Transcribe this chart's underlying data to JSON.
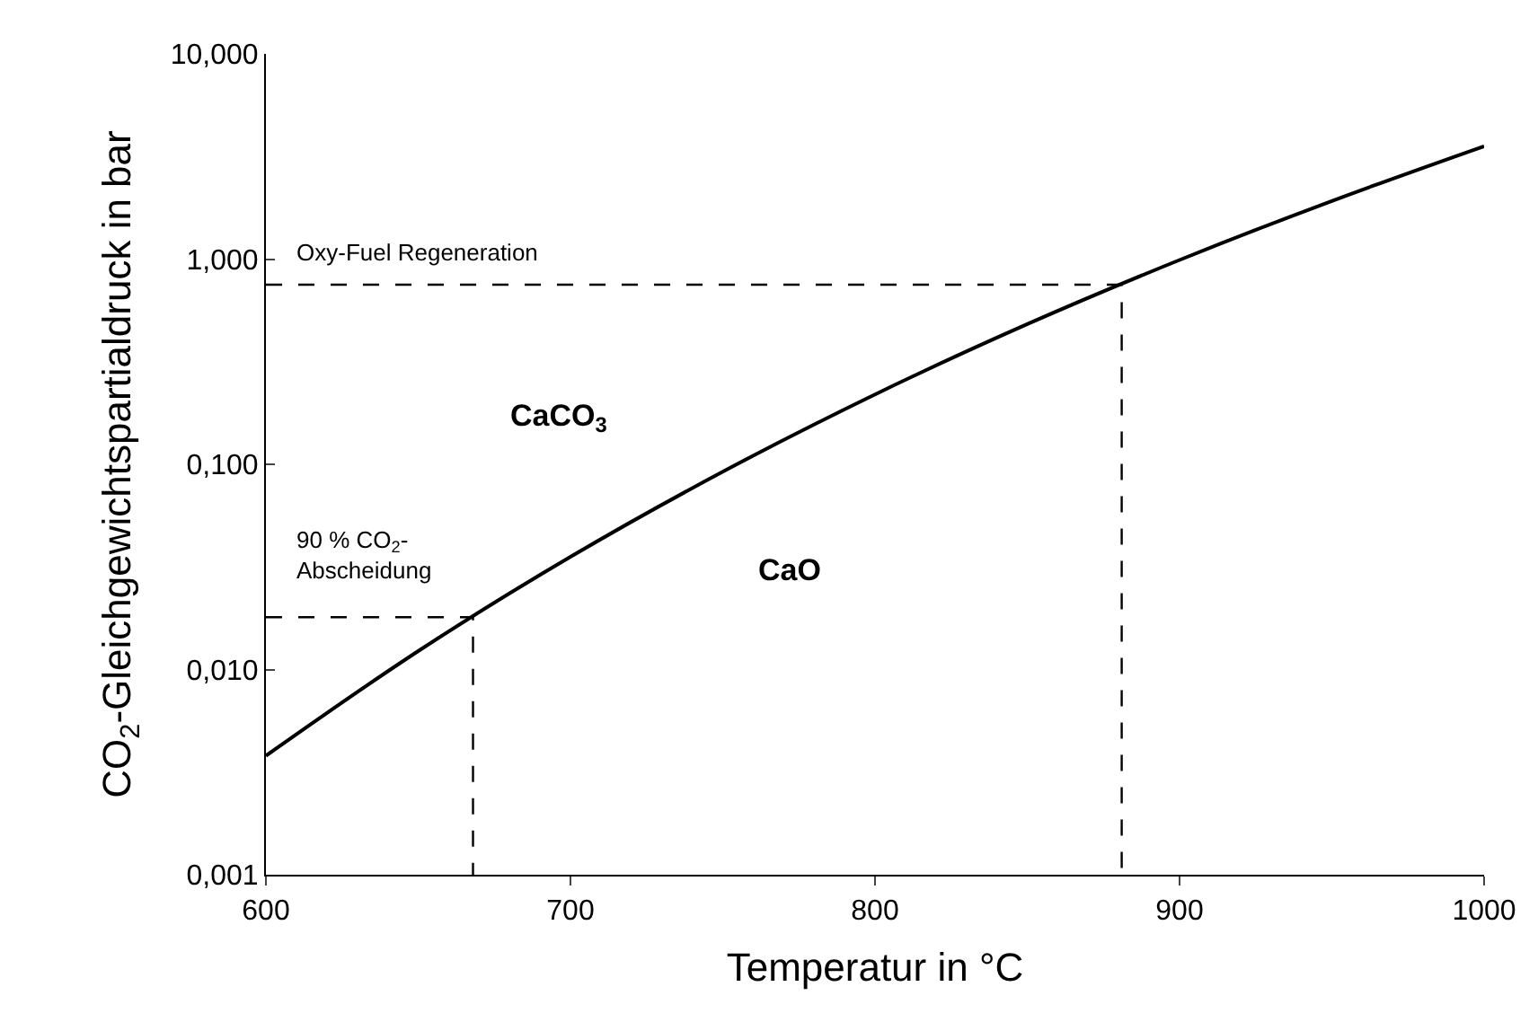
{
  "chart_data": {
    "type": "line",
    "xlabel": "Temperatur in °C",
    "ylabel": "CO$_{2}$-Gleichgewichtspartialdruck in bar",
    "series": [
      {
        "color": "#000000",
        "line_style": "solid",
        "x": [
          600,
          650,
          700,
          750,
          800,
          850,
          900,
          950,
          1000
        ],
        "values": [
          0.0038,
          0.0123,
          0.0354,
          0.092,
          0.219,
          0.482,
          0.99,
          1.92,
          3.55
        ]
      },
      {
        "color": "#000000",
        "line_style": "dashed",
        "x": [
          600,
          668,
          668
        ],
        "values": [
          0.018,
          0.018,
          0.001
        ]
      },
      {
        "color": "#000000",
        "line_style": "dashed",
        "x": [
          600,
          881,
          881
        ],
        "values": [
          0.75,
          0.75,
          0.001
        ]
      }
    ],
    "annotations": [
      "Oxy-Fuel Regeneration",
      "90 % CO$_{2}$-\nAbscheidung",
      "CaCO$_{3}$",
      "CaO"
    ],
    "log": "y",
    "marker": "none",
    "xlim": [
      600,
      1000
    ],
    "xticks": [
      600,
      700,
      800,
      900,
      1000
    ],
    "ylim": [
      0.001,
      10
    ],
    "yticks": [
      {
        "value": 0.001,
        "label": "0,001"
      },
      {
        "value": 0.01,
        "label": "0,010"
      },
      {
        "value": 0.1,
        "label": "0,100"
      },
      {
        "value": 1,
        "label": "1,000"
      },
      {
        "value": 10,
        "label": "10,000"
      }
    ]
  }
}
